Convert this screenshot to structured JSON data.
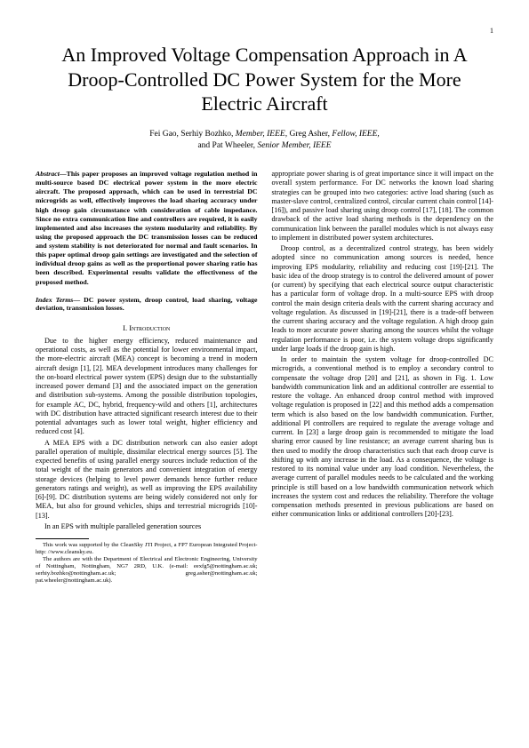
{
  "page_number": "1",
  "title": "An Improved Voltage Compensation Approach in A Droop-Controlled DC Power System for the More Electric Aircraft",
  "authors_line1": "Fei Gao, Serhiy Bozhko, ",
  "authors_member1": "Member, IEEE,",
  "authors_line2": " Greg Asher, ",
  "authors_fellow": "Fellow, IEEE,",
  "authors_line3": "and Pat Wheeler, ",
  "authors_senior": "Senior Member, IEEE",
  "abstract_label": "Abstract—",
  "abstract_text": "This paper proposes an improved voltage regulation method in multi-source based DC electrical power system in the more electric aircraft. The proposed approach, which can be used in terrestrial DC microgrids as well, effectively improves the load sharing accuracy under high droop gain circumstance with consideration of cable impedance. Since no extra communication line and controllers are required, it is easily implemented and also increases the system modularity and reliability. By using the proposed approach the DC transmission losses can be reduced and system stability is not deteriorated for normal and fault scenarios. In this paper optimal droop gain settings are investigated and the selection of individual droop gains as well as the proportional power sharing ratio has been described. Experimental results validate the effectiveness of the proposed method.",
  "index_label": "Index Terms—",
  "index_text": " DC power system, droop control, load sharing, voltage deviation, transmission losses.",
  "section1_num": "I.",
  "section1_title": "Introduction",
  "left_p1": "Due to the higher energy efficiency, reduced maintenance and operational costs, as well as the potential for lower environmental impact, the more-electric aircraft (MEA) concept is becoming a trend in modern aircraft design [1], [2]. MEA development introduces many challenges for the on-board electrical power system (EPS) design due to the substantially increased power demand [3] and the associated impact on the generation and distribution sub-systems. Among the possible distribution topologies, for example AC, DC, hybrid, frequency-wild and others [1], architectures with DC distribution have attracted significant research interest due to their potential advantages such as lower total weight, higher efficiency and reduced cost [4].",
  "left_p2": "A MEA EPS with a DC distribution network can also easier adopt parallel operation of multiple, dissimilar electrical energy sources [5]. The expected benefits of using parallel energy sources include reduction of the total weight of the main generators and convenient integration of energy storage devices (helping to level power demands hence further reduce generators ratings and weight), as well as improving the EPS availability [6]-[9]. DC distribution systems are being widely considered not only for MEA, but also for ground vehicles, ships and terrestrial microgrids [10]-[13].",
  "left_p3": "In an EPS with multiple paralleled generation sources",
  "footnote1": "This work was supported by the CleanSky JTI Project, a FP7 European Integrated Project-http: //www.cleansky.eu.",
  "footnote2": "The authors are with the Department of Electrical and Electronic Engineering, University of Nottingham, Nottingham, NG7 2RD, U.K. (e-mail: eexfg5@nottingham.ac.uk; serhiy.bozhko@nottingham.ac.uk; greg.asher@nottingham.ac.uk; pat.wheeler@nottingham.ac.uk).",
  "right_p1": "appropriate power sharing is of great importance since it will impact on the overall system performance. For DC networks the known load sharing strategies can be grouped into two categories: active load sharing (such as master-slave control, centralized control, circular current chain control [14]-[16]), and passive load sharing using droop control [17], [18]. The common drawback of the active load sharing methods is the dependency on the communication link between the parallel modules which is not always easy to implement in distributed power system architectures.",
  "right_p2": "Droop control, as a decentralized control strategy, has been widely adopted since no communication among sources is needed, hence improving EPS modularity, reliability and reducing cost [19]-[21]. The basic idea of the droop strategy is to control the delivered amount of power (or current) by specifying that each electrical source output characteristic has a particular form of voltage drop. In a multi-source EPS with droop control the main design criteria deals with the current sharing accuracy and voltage regulation. As discussed in [19]-[21], there is a trade-off between the current sharing accuracy and the voltage regulation. A high droop gain leads to more accurate power sharing among the sources whilst the voltage regulation performance is poor, i.e. the system voltage drops significantly under large loads if the droop gain is high.",
  "right_p3": "In order to maintain the system voltage for droop-controlled DC microgrids, a conventional method is to employ a secondary control to compensate the voltage drop [20] and [21], as shown in Fig. 1. Low bandwidth communication link and an additional controller are essential to restore the voltage. An enhanced droop control method with improved voltage regulation is proposed in [22] and this method adds a compensation term which is also based on the low bandwidth communication. Further, additional PI controllers are required to regulate the average voltage and current. In [23] a large droop gain is recommended to mitigate the load sharing error caused by line resistance; an average current sharing bus is then used to modify the droop characteristics such that each droop curve is shifting up with any increase in the load. As a consequence, the voltage is restored to its nominal value under any load condition. Nevertheless, the average current of parallel modules needs to be calculated and the working principle is still based on a low bandwidth communication network which increases the system cost and reduces the reliability. Therefore the voltage compensation methods presented in previous publications are based on either communication links or additional controllers [20]-[23]."
}
